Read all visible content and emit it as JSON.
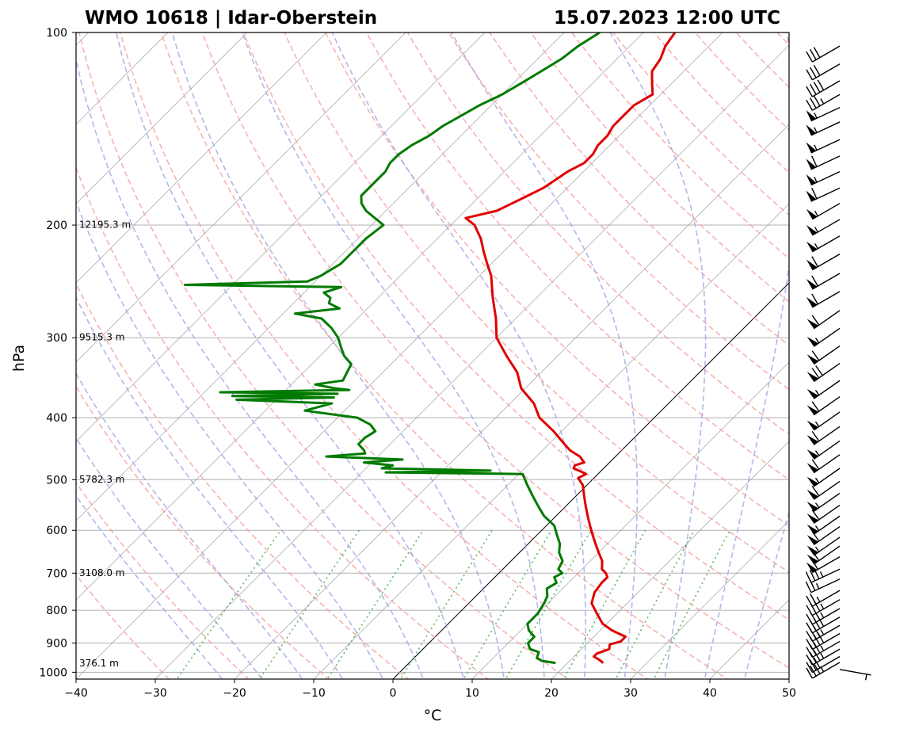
{
  "header": {
    "station": "WMO 10618 | Idar-Oberstein",
    "datetime": "15.07.2023 12:00 UTC"
  },
  "chart_data": {
    "type": "line",
    "subtype": "skew-t log-p",
    "title": "WMO 10618 | Idar-Oberstein",
    "subtitle": "15.07.2023 12:00 UTC",
    "xlabel": "°C",
    "ylabel": "hPa",
    "xlim": [
      -40,
      50
    ],
    "ylim": [
      1025,
      100
    ],
    "y_scale": "log",
    "skew": "45 degrees",
    "x_ticks": [
      -40,
      -30,
      -20,
      -10,
      0,
      10,
      20,
      30,
      40,
      50
    ],
    "x_tick_labels": [
      "−40",
      "−30",
      "−20",
      "−10",
      "0",
      "10",
      "20",
      "30",
      "40",
      "50"
    ],
    "y_ticks": [
      100,
      200,
      300,
      400,
      500,
      600,
      700,
      800,
      900,
      1000
    ],
    "y_tick_labels": [
      "100",
      "200",
      "300",
      "400",
      "500",
      "600",
      "700",
      "800",
      "900",
      "1000"
    ],
    "grid": true,
    "height_labels": [
      {
        "p": 200,
        "label": "12195.3 m"
      },
      {
        "p": 300,
        "label": "9515.3 m"
      },
      {
        "p": 500,
        "label": "5782.3 m"
      },
      {
        "p": 700,
        "label": "3108.0 m"
      },
      {
        "p": 970,
        "label": "376.1 m"
      }
    ],
    "colors": {
      "temperature": "#e00000",
      "dewpoint": "#007a00",
      "dry_adiabat": "#f4a0a0",
      "moist_adiabat": "#a8a8e8",
      "mixing_ratio": "#4caf50",
      "isotherm": "#808080",
      "zero_isotherm": "#000000"
    },
    "series": [
      {
        "key": "temperature",
        "p": [
          967,
          955,
          945,
          935,
          920,
          905,
          895,
          880,
          860,
          840,
          810,
          780,
          750,
          725,
          710,
          700,
          690,
          670,
          650,
          630,
          610,
          590,
          570,
          550,
          530,
          510,
          497,
          490,
          485,
          480,
          475,
          470,
          460,
          450,
          440,
          420,
          400,
          380,
          360,
          340,
          320,
          300,
          280,
          260,
          240,
          230,
          220,
          210,
          200,
          195,
          190,
          185,
          180,
          175,
          170,
          165,
          160,
          155,
          150,
          145,
          140,
          135,
          130,
          125,
          120,
          115,
          110,
          105,
          100
        ],
        "t": [
          24.5,
          23.5,
          22.5,
          22.5,
          23.5,
          23,
          24,
          24,
          21.5,
          19.5,
          17.5,
          15.5,
          14.5,
          14.2,
          14.2,
          13.5,
          12.5,
          11.5,
          10.0,
          8.5,
          7.0,
          5.5,
          4.0,
          2.5,
          1.0,
          -0.5,
          -2.0,
          -1.5,
          -2.6,
          -3.8,
          -4.0,
          -3.2,
          -4.5,
          -6.5,
          -8.0,
          -11.0,
          -14.5,
          -17.0,
          -20.5,
          -23.0,
          -26.5,
          -30.0,
          -32.5,
          -35.5,
          -38.5,
          -40.5,
          -42.5,
          -44.5,
          -47.0,
          -49.0,
          -46.0,
          -45.0,
          -44.0,
          -43.0,
          -42.5,
          -42.0,
          -41.0,
          -41.0,
          -41.5,
          -41.5,
          -42.0,
          -42.0,
          -42.0,
          -41.0,
          -42.5,
          -44.0,
          -44.5,
          -45.5,
          -46.0
        ]
      },
      {
        "key": "dewpoint",
        "p": [
          967,
          960,
          950,
          930,
          920,
          900,
          880,
          860,
          840,
          810,
          780,
          760,
          740,
          725,
          710,
          700,
          690,
          670,
          650,
          630,
          610,
          590,
          570,
          550,
          530,
          510,
          495,
          490,
          487,
          484,
          480,
          475,
          470,
          465,
          460,
          455,
          450,
          440,
          430,
          420,
          410,
          400,
          390,
          380,
          375,
          372,
          370,
          367,
          365,
          362,
          360,
          355,
          350,
          340,
          330,
          320,
          310,
          300,
          290,
          280,
          275,
          270,
          265,
          260,
          255,
          250,
          248,
          245,
          240,
          230,
          220,
          210,
          200,
          190,
          185,
          180,
          175,
          170,
          165,
          160,
          155,
          150,
          145,
          140,
          135,
          130,
          125,
          120,
          115,
          110,
          105,
          100
        ],
        "t": [
          18.5,
          16.5,
          15.5,
          15.0,
          13.5,
          12.5,
          12.5,
          11.0,
          10.0,
          10.0,
          9.5,
          9.0,
          8.0,
          8.5,
          7.5,
          8.0,
          7.0,
          6.5,
          5.0,
          4.0,
          2.5,
          1.0,
          -1.5,
          -3.5,
          -5.5,
          -7.5,
          -9.0,
          -9.5,
          -27.0,
          -14.0,
          -28.0,
          -27.0,
          -31.0,
          -26.5,
          -36.5,
          -32.0,
          -32.5,
          -34.0,
          -34.0,
          -33.5,
          -35.0,
          -37.5,
          -45.0,
          -42.5,
          -55.0,
          -43.0,
          -56.0,
          -43.0,
          -58.0,
          -42.0,
          -44.0,
          -47.0,
          -44.0,
          -44.5,
          -45.0,
          -47.0,
          -48.5,
          -50.0,
          -52.0,
          -54.5,
          -58.5,
          -53.5,
          -55.5,
          -56.0,
          -57.5,
          -56.0,
          -76.0,
          -61.0,
          -60.0,
          -59.0,
          -59.0,
          -59.0,
          -58.5,
          -62.5,
          -64.0,
          -65.0,
          -65.0,
          -65.0,
          -65.0,
          -65.5,
          -65.5,
          -65.0,
          -64.0,
          -63.5,
          -62.5,
          -61.5,
          -60.0,
          -59.0,
          -58.0,
          -57.0,
          -56.5,
          -55.5
        ]
      }
    ],
    "wind_barbs": {
      "p": [
        990,
        965,
        945,
        920,
        895,
        870,
        845,
        820,
        795,
        770,
        745,
        715,
        690,
        660,
        635,
        615,
        592,
        570,
        548,
        525,
        503,
        480,
        457,
        435,
        413,
        392,
        371,
        350,
        329,
        309,
        290,
        272,
        254,
        238,
        222,
        208,
        196,
        185,
        175,
        165,
        156,
        147,
        138,
        131,
        125,
        119,
        112,
        105
      ],
      "speed_kt": [
        5,
        35,
        30,
        35,
        35,
        40,
        35,
        40,
        35,
        35,
        25,
        25,
        35,
        55,
        60,
        55,
        60,
        55,
        60,
        55,
        60,
        55,
        60,
        55,
        60,
        55,
        60,
        55,
        70,
        60,
        55,
        60,
        60,
        60,
        60,
        55,
        55,
        55,
        60,
        55,
        60,
        55,
        55,
        55,
        35,
        40,
        30,
        30
      ],
      "dir_deg": [
        100,
        240,
        240,
        240,
        240,
        240,
        240,
        240,
        240,
        240,
        240,
        245,
        245,
        240,
        235,
        235,
        235,
        235,
        235,
        235,
        235,
        235,
        235,
        235,
        235,
        235,
        235,
        235,
        235,
        235,
        235,
        235,
        240,
        240,
        240,
        240,
        240,
        240,
        245,
        245,
        245,
        245,
        245,
        245,
        240,
        240,
        240,
        240
      ]
    }
  }
}
